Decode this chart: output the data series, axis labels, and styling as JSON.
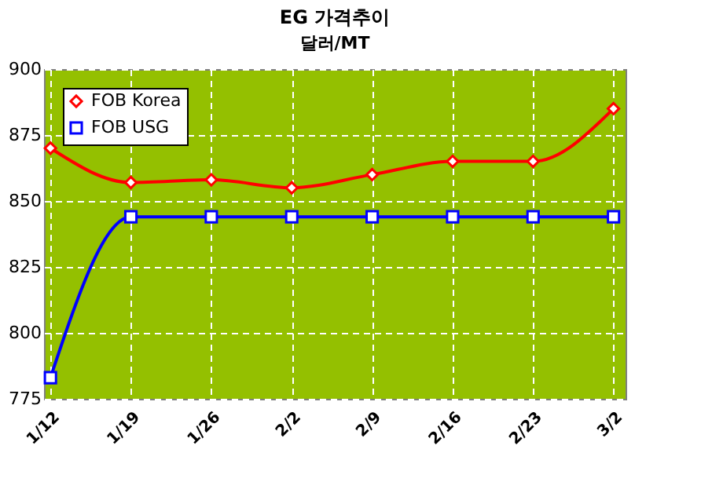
{
  "chart_data": {
    "type": "line",
    "title": "EG 가격추이",
    "ylabel": "달러/MT",
    "categories": [
      "1/12",
      "1/19",
      "1/26",
      "2/2",
      "2/9",
      "2/16",
      "2/23",
      "3/2"
    ],
    "series": [
      {
        "name": "FOB Korea",
        "color": "#ff0000",
        "marker": "diamond",
        "values": [
          870,
          857,
          858,
          855,
          860,
          865,
          865,
          885
        ]
      },
      {
        "name": "FOB USG",
        "color": "#0000ff",
        "marker": "square",
        "values": [
          783,
          844,
          844,
          844,
          844,
          844,
          844,
          844
        ]
      }
    ],
    "ylim": [
      775,
      900
    ],
    "yticks": [
      775,
      800,
      825,
      850,
      875,
      900
    ],
    "grid": true,
    "legend": "top left",
    "line_style": "solid"
  }
}
